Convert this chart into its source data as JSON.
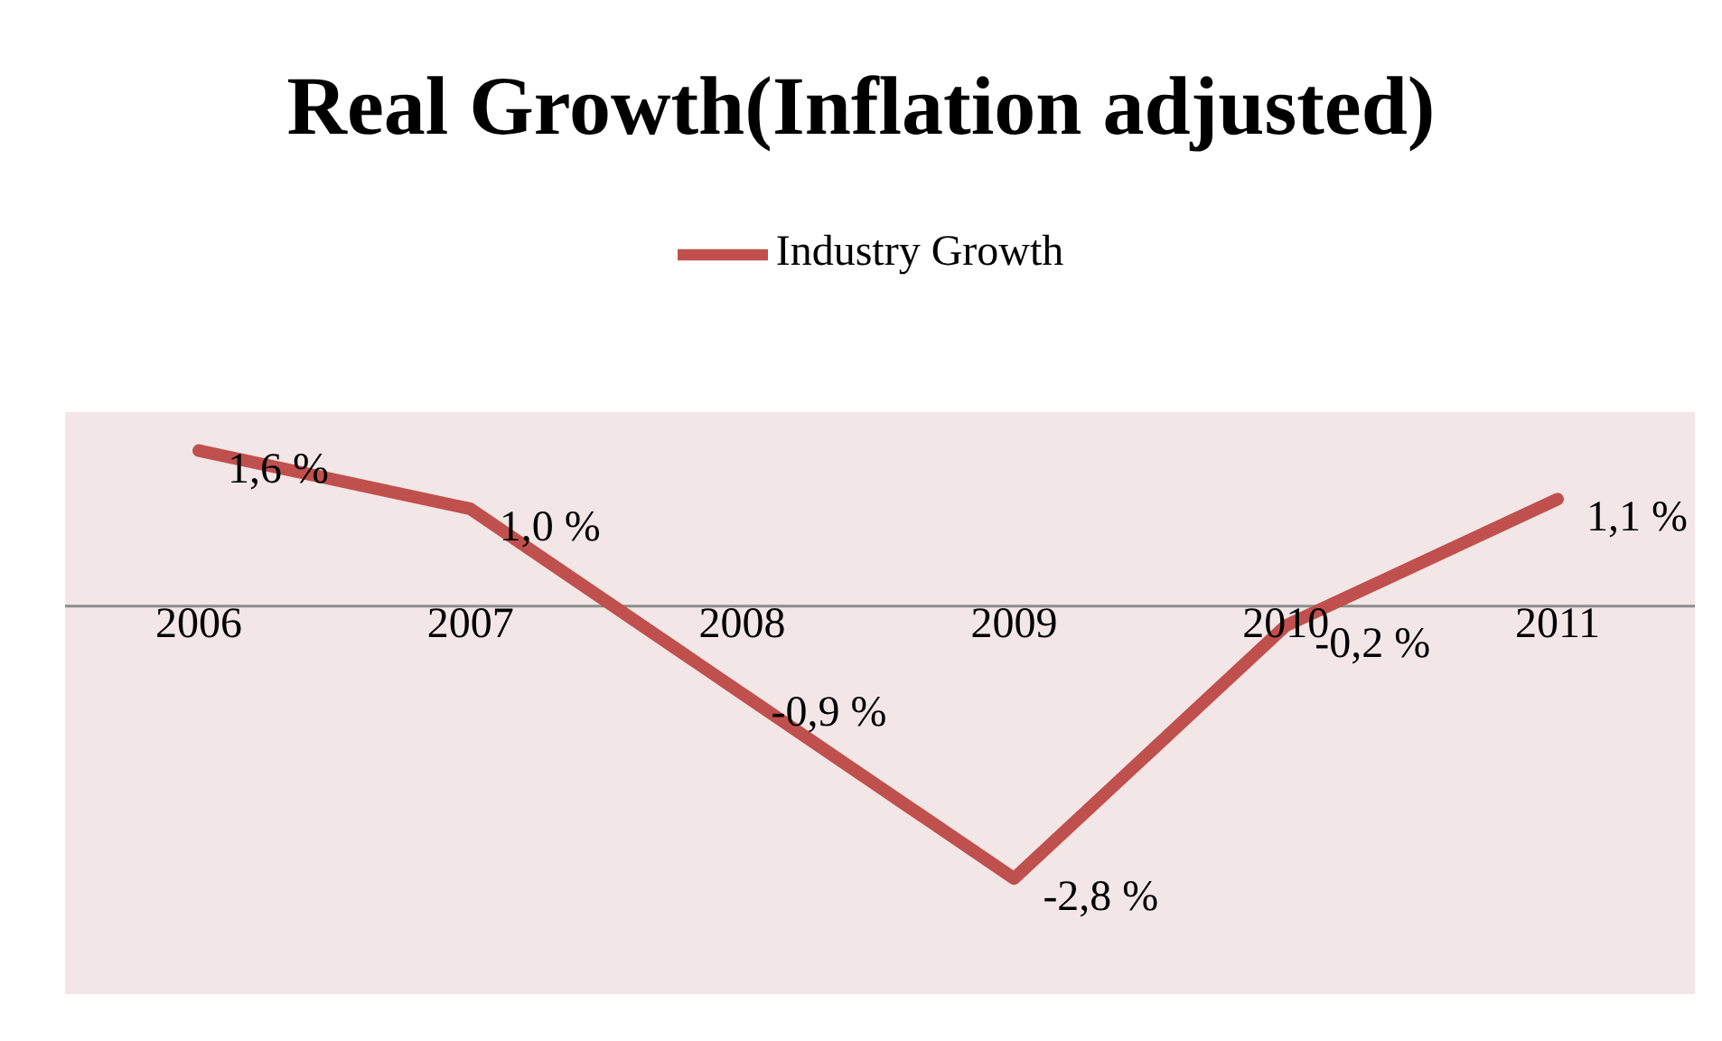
{
  "chart_data": {
    "type": "line",
    "title": "Real Growth(Inflation adjusted)",
    "categories": [
      "2006",
      "2007",
      "2008",
      "2009",
      "2010",
      "2011"
    ],
    "series": [
      {
        "name": "Industry Growth",
        "color": "#c0504d",
        "values": [
          1.6,
          1.0,
          -0.9,
          -2.8,
          -0.2,
          1.1
        ],
        "value_labels": [
          "1,6 %",
          "1,0 %",
          "-0,9 %",
          "-2,8 %",
          "-0,2 %",
          "1,1 %"
        ]
      }
    ],
    "data_labels": true,
    "legend": "top",
    "grid": false,
    "marker": "none",
    "line_style": "solid"
  }
}
